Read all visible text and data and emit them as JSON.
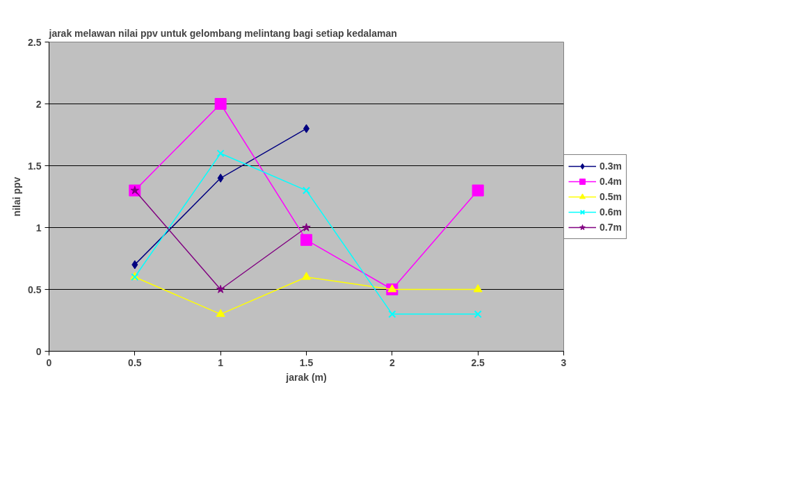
{
  "chart_data": {
    "type": "line",
    "title": "jarak melawan nilai ppv untuk gelombang melintang bagi setiap kedalaman",
    "xlabel": "jarak (m)",
    "ylabel": "nilai ppv",
    "x": [
      0.5,
      1,
      1.5,
      2,
      2.5
    ],
    "series": [
      {
        "name": "0.3m",
        "color": "#000080",
        "marker": "diamond",
        "x": [
          0.5,
          1,
          1.5
        ],
        "values": [
          0.7,
          1.4,
          1.8
        ]
      },
      {
        "name": "0.4m",
        "color": "#ff00ff",
        "marker": "square",
        "values": [
          1.3,
          2.0,
          0.9,
          0.5,
          1.3
        ]
      },
      {
        "name": "0.5m",
        "color": "#ffff00",
        "marker": "triangle",
        "values": [
          0.6,
          0.3,
          0.6,
          0.5,
          0.5
        ]
      },
      {
        "name": "0.6m",
        "color": "#00ffff",
        "marker": "cross",
        "values": [
          0.6,
          1.6,
          1.3,
          0.3,
          0.3
        ]
      },
      {
        "name": "0.7m",
        "color": "#800080",
        "marker": "star",
        "x": [
          0.5,
          1,
          1.5
        ],
        "values": [
          1.3,
          0.5,
          1.0
        ]
      }
    ],
    "xlim": [
      0,
      3
    ],
    "xticks": [
      0,
      0.5,
      1,
      1.5,
      2,
      2.5,
      3
    ],
    "ylim": [
      0,
      2.5
    ],
    "yticks": [
      0,
      0.5,
      1,
      1.5,
      2,
      2.5
    ],
    "grid": "y",
    "legend": "right",
    "line_style": "solid"
  }
}
